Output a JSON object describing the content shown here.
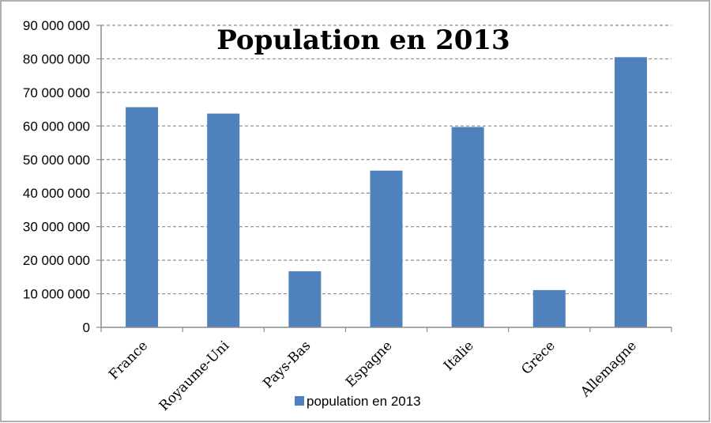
{
  "chart_data": {
    "type": "bar",
    "title": "Population en 2013",
    "categories": [
      "France",
      "Royaume-Uni",
      "Pays-Bas",
      "Espagne",
      "Italie",
      "Grèce",
      "Allemagne"
    ],
    "series": [
      {
        "name": "population en 2013",
        "values": [
          65600000,
          63700000,
          16700000,
          46700000,
          59700000,
          11100000,
          80500000
        ],
        "color": "#4f81bd"
      }
    ],
    "ylim": [
      0,
      90000000
    ],
    "yticks": [
      "0",
      "10 000 000",
      "20 000 000",
      "30 000 000",
      "40 000 000",
      "50 000 000",
      "60 000 000",
      "70 000 000",
      "80 000 000",
      "90 000 000"
    ],
    "grid": true,
    "legend": "bottom",
    "colors": {
      "bar": "#4f81bd",
      "grid": "#8c8c8c",
      "axis": "#8c8c8c",
      "frame": "#b0b0b0"
    }
  }
}
